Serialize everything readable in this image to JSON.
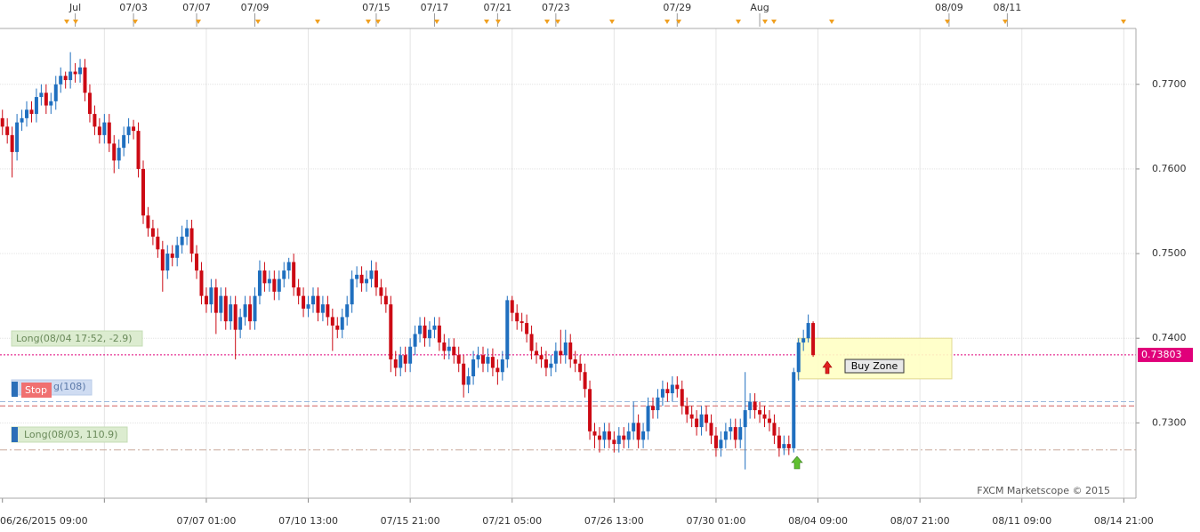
{
  "chart_data": {
    "type": "candlestick",
    "ylim": [
      0.7211,
      0.7766
    ],
    "yticks": [
      {
        "value": 0.77,
        "label": "0.7700"
      },
      {
        "value": 0.76,
        "label": "0.7600"
      },
      {
        "value": 0.75,
        "label": "0.7500"
      },
      {
        "value": 0.74,
        "label": "0.7400"
      },
      {
        "value": 0.73,
        "label": "0.7300"
      }
    ],
    "xlim": [
      -0.5,
      233.5
    ],
    "xticks": [
      {
        "value": 0,
        "label": "06/26/2015 09:00"
      },
      {
        "value": 21,
        "label": null
      },
      {
        "value": 42,
        "label": "07/07 01:00"
      },
      {
        "value": 63,
        "label": "07/10 13:00"
      },
      {
        "value": 84,
        "label": "07/15 21:00"
      },
      {
        "value": 105,
        "label": "07/21 05:00"
      },
      {
        "value": 126,
        "label": "07/26 13:00"
      },
      {
        "value": 147,
        "label": "07/30 01:00"
      },
      {
        "value": 168,
        "label": "08/04 09:00"
      },
      {
        "value": 189,
        "label": "08/07 21:00"
      },
      {
        "value": 210,
        "label": "08/11 09:00"
      },
      {
        "value": 231,
        "label": "08/14 21:00"
      }
    ],
    "top_ticks": [
      {
        "value": 15,
        "label": "Jul"
      },
      {
        "value": 27,
        "label": "07/03"
      },
      {
        "value": 40,
        "label": "07/07"
      },
      {
        "value": 52,
        "label": "07/09"
      },
      {
        "value": 77,
        "label": "07/15"
      },
      {
        "value": 89,
        "label": "07/17"
      },
      {
        "value": 102,
        "label": "07/21"
      },
      {
        "value": 114,
        "label": "07/23"
      },
      {
        "value": 139,
        "label": "07/29"
      },
      {
        "value": 156,
        "label": "Aug"
      },
      {
        "value": 195,
        "label": "08/09"
      },
      {
        "value": 207,
        "label": "08/11"
      }
    ],
    "grid": true,
    "up_color": "#1f6fbf",
    "down_color": "#cc0a14",
    "ohlc": [
      [
        0.766,
        0.767,
        0.764,
        0.765
      ],
      [
        0.765,
        0.766,
        0.763,
        0.764
      ],
      [
        0.764,
        0.765,
        0.759,
        0.762
      ],
      [
        0.762,
        0.7665,
        0.761,
        0.7655
      ],
      [
        0.7655,
        0.767,
        0.7645,
        0.766
      ],
      [
        0.766,
        0.768,
        0.765,
        0.767
      ],
      [
        0.767,
        0.768,
        0.7655,
        0.7665
      ],
      [
        0.7665,
        0.7695,
        0.7655,
        0.7685
      ],
      [
        0.7685,
        0.77,
        0.7675,
        0.769
      ],
      [
        0.769,
        0.77,
        0.7665,
        0.7675
      ],
      [
        0.7675,
        0.769,
        0.7665,
        0.768
      ],
      [
        0.768,
        0.771,
        0.767,
        0.77
      ],
      [
        0.77,
        0.772,
        0.769,
        0.771
      ],
      [
        0.771,
        0.7715,
        0.7695,
        0.7705
      ],
      [
        0.7705,
        0.7738,
        0.7695,
        0.7715
      ],
      [
        0.7715,
        0.7725,
        0.7702,
        0.7712
      ],
      [
        0.7712,
        0.773,
        0.7702,
        0.772
      ],
      [
        0.772,
        0.773,
        0.768,
        0.769
      ],
      [
        0.769,
        0.77,
        0.7655,
        0.7665
      ],
      [
        0.7665,
        0.7675,
        0.764,
        0.765
      ],
      [
        0.765,
        0.766,
        0.763,
        0.764
      ],
      [
        0.764,
        0.7665,
        0.763,
        0.7655
      ],
      [
        0.7655,
        0.7665,
        0.762,
        0.763
      ],
      [
        0.763,
        0.764,
        0.7595,
        0.761
      ],
      [
        0.761,
        0.7635,
        0.76,
        0.7625
      ],
      [
        0.7625,
        0.765,
        0.7615,
        0.764
      ],
      [
        0.764,
        0.766,
        0.763,
        0.765
      ],
      [
        0.765,
        0.7658,
        0.7635,
        0.7645
      ],
      [
        0.7645,
        0.7655,
        0.759,
        0.76
      ],
      [
        0.76,
        0.761,
        0.7535,
        0.7545
      ],
      [
        0.7545,
        0.7555,
        0.752,
        0.753
      ],
      [
        0.753,
        0.754,
        0.751,
        0.752
      ],
      [
        0.752,
        0.753,
        0.7495,
        0.7505
      ],
      [
        0.7505,
        0.7515,
        0.7455,
        0.748
      ],
      [
        0.748,
        0.751,
        0.747,
        0.75
      ],
      [
        0.75,
        0.751,
        0.7485,
        0.7495
      ],
      [
        0.7495,
        0.752,
        0.7485,
        0.751
      ],
      [
        0.751,
        0.7533,
        0.75,
        0.752
      ],
      [
        0.752,
        0.754,
        0.751,
        0.753
      ],
      [
        0.753,
        0.754,
        0.749,
        0.75
      ],
      [
        0.75,
        0.751,
        0.747,
        0.748
      ],
      [
        0.748,
        0.749,
        0.744,
        0.745
      ],
      [
        0.745,
        0.746,
        0.743,
        0.744
      ],
      [
        0.744,
        0.747,
        0.743,
        0.746
      ],
      [
        0.746,
        0.747,
        0.7405,
        0.743
      ],
      [
        0.743,
        0.746,
        0.742,
        0.745
      ],
      [
        0.745,
        0.746,
        0.741,
        0.742
      ],
      [
        0.742,
        0.745,
        0.741,
        0.744
      ],
      [
        0.744,
        0.745,
        0.7375,
        0.741
      ],
      [
        0.741,
        0.7435,
        0.74,
        0.7425
      ],
      [
        0.7425,
        0.745,
        0.7415,
        0.744
      ],
      [
        0.744,
        0.745,
        0.741,
        0.742
      ],
      [
        0.742,
        0.746,
        0.741,
        0.745
      ],
      [
        0.745,
        0.7492,
        0.744,
        0.748
      ],
      [
        0.748,
        0.749,
        0.7455,
        0.7465
      ],
      [
        0.7465,
        0.748,
        0.7455,
        0.747
      ],
      [
        0.747,
        0.748,
        0.7445,
        0.7455
      ],
      [
        0.7455,
        0.748,
        0.7445,
        0.747
      ],
      [
        0.747,
        0.749,
        0.746,
        0.748
      ],
      [
        0.748,
        0.7495,
        0.747,
        0.749
      ],
      [
        0.749,
        0.75,
        0.745,
        0.746
      ],
      [
        0.746,
        0.747,
        0.744,
        0.745
      ],
      [
        0.745,
        0.746,
        0.7425,
        0.7435
      ],
      [
        0.7435,
        0.745,
        0.7425,
        0.744
      ],
      [
        0.744,
        0.746,
        0.743,
        0.745
      ],
      [
        0.745,
        0.746,
        0.742,
        0.743
      ],
      [
        0.743,
        0.745,
        0.742,
        0.744
      ],
      [
        0.744,
        0.745,
        0.7415,
        0.7425
      ],
      [
        0.7425,
        0.7435,
        0.7385,
        0.7415
      ],
      [
        0.7415,
        0.7425,
        0.74,
        0.741
      ],
      [
        0.741,
        0.7435,
        0.74,
        0.7425
      ],
      [
        0.7425,
        0.745,
        0.7415,
        0.744
      ],
      [
        0.744,
        0.748,
        0.743,
        0.747
      ],
      [
        0.747,
        0.7485,
        0.746,
        0.7475
      ],
      [
        0.7475,
        0.7485,
        0.7455,
        0.7465
      ],
      [
        0.7465,
        0.748,
        0.7455,
        0.747
      ],
      [
        0.747,
        0.7492,
        0.746,
        0.748
      ],
      [
        0.748,
        0.749,
        0.745,
        0.746
      ],
      [
        0.746,
        0.747,
        0.744,
        0.745
      ],
      [
        0.745,
        0.746,
        0.743,
        0.744
      ],
      [
        0.744,
        0.745,
        0.736,
        0.7375
      ],
      [
        0.7375,
        0.7385,
        0.7355,
        0.7365
      ],
      [
        0.7365,
        0.739,
        0.7355,
        0.738
      ],
      [
        0.738,
        0.739,
        0.736,
        0.737
      ],
      [
        0.737,
        0.74,
        0.736,
        0.739
      ],
      [
        0.739,
        0.7415,
        0.738,
        0.7405
      ],
      [
        0.7405,
        0.7425,
        0.7395,
        0.7415
      ],
      [
        0.7415,
        0.7425,
        0.739,
        0.74
      ],
      [
        0.74,
        0.742,
        0.739,
        0.741
      ],
      [
        0.741,
        0.7425,
        0.74,
        0.7415
      ],
      [
        0.7415,
        0.7425,
        0.7385,
        0.7395
      ],
      [
        0.7395,
        0.7405,
        0.7375,
        0.7385
      ],
      [
        0.7385,
        0.74,
        0.7375,
        0.739
      ],
      [
        0.739,
        0.74,
        0.737,
        0.738
      ],
      [
        0.738,
        0.739,
        0.736,
        0.737
      ],
      [
        0.737,
        0.738,
        0.733,
        0.7345
      ],
      [
        0.7345,
        0.7365,
        0.7335,
        0.7355
      ],
      [
        0.7355,
        0.7385,
        0.7345,
        0.7375
      ],
      [
        0.7375,
        0.739,
        0.7365,
        0.738
      ],
      [
        0.738,
        0.739,
        0.736,
        0.737
      ],
      [
        0.737,
        0.7388,
        0.736,
        0.7378
      ],
      [
        0.7378,
        0.7388,
        0.7355,
        0.7365
      ],
      [
        0.7365,
        0.7375,
        0.7345,
        0.736
      ],
      [
        0.736,
        0.7385,
        0.735,
        0.7375
      ],
      [
        0.7375,
        0.745,
        0.7365,
        0.7445
      ],
      [
        0.7445,
        0.745,
        0.742,
        0.743
      ],
      [
        0.743,
        0.744,
        0.741,
        0.742
      ],
      [
        0.742,
        0.743,
        0.7408,
        0.7418
      ],
      [
        0.7418,
        0.7428,
        0.7395,
        0.7405
      ],
      [
        0.7405,
        0.7415,
        0.7375,
        0.7385
      ],
      [
        0.7385,
        0.7395,
        0.737,
        0.738
      ],
      [
        0.738,
        0.739,
        0.7365,
        0.7375
      ],
      [
        0.7375,
        0.7385,
        0.7355,
        0.7365
      ],
      [
        0.7365,
        0.738,
        0.7355,
        0.737
      ],
      [
        0.737,
        0.7395,
        0.736,
        0.7385
      ],
      [
        0.7385,
        0.741,
        0.737,
        0.738
      ],
      [
        0.738,
        0.741,
        0.737,
        0.7395
      ],
      [
        0.7395,
        0.7405,
        0.7365,
        0.7375
      ],
      [
        0.7375,
        0.7385,
        0.736,
        0.737
      ],
      [
        0.737,
        0.738,
        0.735,
        0.736
      ],
      [
        0.736,
        0.737,
        0.733,
        0.734
      ],
      [
        0.734,
        0.735,
        0.728,
        0.729
      ],
      [
        0.729,
        0.73,
        0.727,
        0.7285
      ],
      [
        0.7285,
        0.7295,
        0.7265,
        0.728
      ],
      [
        0.728,
        0.73,
        0.727,
        0.729
      ],
      [
        0.729,
        0.73,
        0.727,
        0.728
      ],
      [
        0.728,
        0.729,
        0.7265,
        0.7275
      ],
      [
        0.7275,
        0.7295,
        0.7265,
        0.7285
      ],
      [
        0.7285,
        0.7295,
        0.727,
        0.728
      ],
      [
        0.728,
        0.73,
        0.727,
        0.729
      ],
      [
        0.729,
        0.7325,
        0.728,
        0.73
      ],
      [
        0.73,
        0.731,
        0.727,
        0.728
      ],
      [
        0.728,
        0.73,
        0.727,
        0.729
      ],
      [
        0.729,
        0.733,
        0.728,
        0.732
      ],
      [
        0.732,
        0.733,
        0.7305,
        0.7315
      ],
      [
        0.7315,
        0.734,
        0.7305,
        0.733
      ],
      [
        0.733,
        0.735,
        0.732,
        0.734
      ],
      [
        0.734,
        0.7348,
        0.7325,
        0.7335
      ],
      [
        0.7335,
        0.7355,
        0.7325,
        0.7345
      ],
      [
        0.7345,
        0.7355,
        0.733,
        0.734
      ],
      [
        0.734,
        0.735,
        0.731,
        0.732
      ],
      [
        0.732,
        0.733,
        0.73,
        0.731
      ],
      [
        0.731,
        0.732,
        0.7295,
        0.7305
      ],
      [
        0.7305,
        0.7315,
        0.7285,
        0.7295
      ],
      [
        0.7295,
        0.732,
        0.7285,
        0.731
      ],
      [
        0.731,
        0.732,
        0.729,
        0.73
      ],
      [
        0.73,
        0.731,
        0.7275,
        0.7285
      ],
      [
        0.7285,
        0.7295,
        0.726,
        0.727
      ],
      [
        0.727,
        0.729,
        0.726,
        0.728
      ],
      [
        0.728,
        0.73,
        0.727,
        0.729
      ],
      [
        0.729,
        0.7305,
        0.728,
        0.7295
      ],
      [
        0.7295,
        0.7305,
        0.727,
        0.728
      ],
      [
        0.728,
        0.7305,
        0.727,
        0.7295
      ],
      [
        0.7295,
        0.736,
        0.7245,
        0.7315
      ],
      [
        0.7315,
        0.7335,
        0.7305,
        0.7325
      ],
      [
        0.7325,
        0.7335,
        0.7305,
        0.7315
      ],
      [
        0.7315,
        0.7325,
        0.73,
        0.731
      ],
      [
        0.731,
        0.732,
        0.7295,
        0.7305
      ],
      [
        0.7305,
        0.7315,
        0.729,
        0.73
      ],
      [
        0.73,
        0.731,
        0.7275,
        0.7285
      ],
      [
        0.7285,
        0.7295,
        0.726,
        0.727
      ],
      [
        0.727,
        0.7285,
        0.7262,
        0.7275
      ],
      [
        0.7275,
        0.7285,
        0.7262,
        0.727
      ],
      [
        0.727,
        0.7365,
        0.7265,
        0.736
      ],
      [
        0.736,
        0.74,
        0.735,
        0.7395
      ],
      [
        0.7395,
        0.741,
        0.7385,
        0.74
      ],
      [
        0.74,
        0.7428,
        0.7395,
        0.7418
      ],
      [
        0.7418,
        0.742,
        0.7378,
        0.738
      ]
    ],
    "levels": [
      {
        "value": 0.73803,
        "label": "0.73803",
        "color": "#e0007a",
        "style": "dotted"
      },
      {
        "value": 0.7325,
        "color": "#9ab8dc",
        "style": "dashed"
      },
      {
        "value": 0.732,
        "color": "#d06060",
        "style": "dashed"
      },
      {
        "value": 0.7268,
        "color": "#c8a89a",
        "style": "dashdot"
      }
    ],
    "buy_zone": {
      "label": "Buy Zone",
      "high": 0.74,
      "low": 0.7352
    },
    "annotations": [
      "Long(08/04 17:52, -2.9)",
      "Stop",
      "g(108)",
      "Long(08/03, 110.9)"
    ],
    "watermark": "FXCM Marketscope © 2015"
  }
}
